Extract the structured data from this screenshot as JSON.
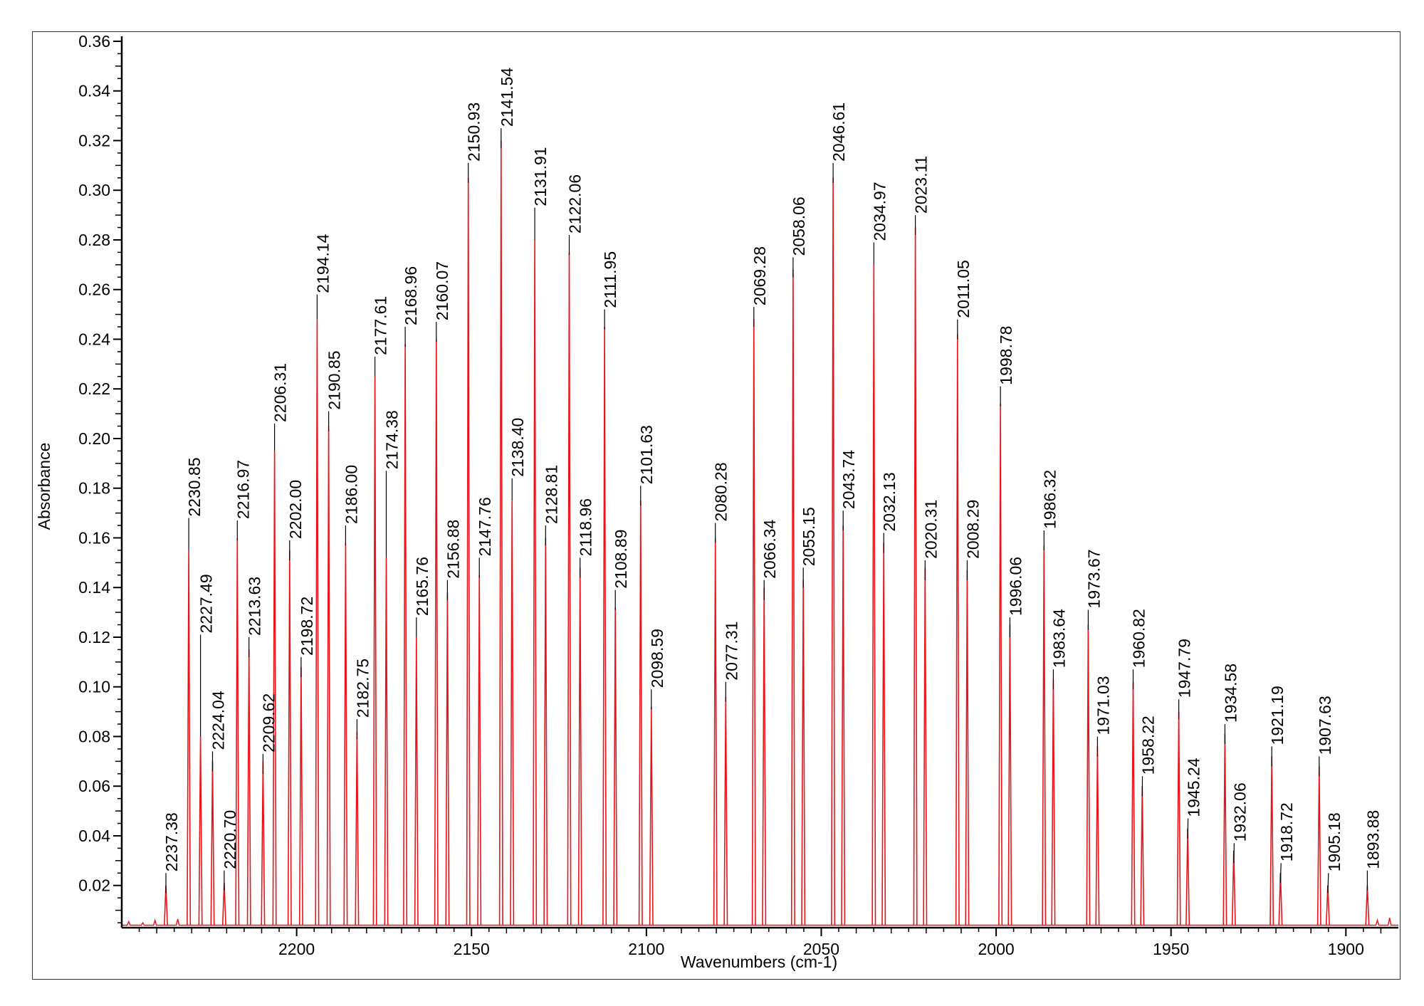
{
  "chart_data": {
    "type": "line",
    "xlabel": "Wavenumbers (cm-1)",
    "ylabel": "Absorbance",
    "xlim": [
      2250,
      1885
    ],
    "ylim": [
      0.003,
      0.362
    ],
    "x_reversed": true,
    "grid": false,
    "legend": "none",
    "line_color": "#e8141b",
    "leader_color": "#000000",
    "x_ticks": [
      {
        "value": 2200,
        "label": "2200"
      },
      {
        "value": 2150,
        "label": "2150"
      },
      {
        "value": 2100,
        "label": "2100"
      },
      {
        "value": 2050,
        "label": "2050"
      },
      {
        "value": 2000,
        "label": "2000"
      },
      {
        "value": 1950,
        "label": "1950"
      },
      {
        "value": 1900,
        "label": "1900"
      }
    ],
    "y_ticks": [
      {
        "value": 0.02,
        "label": "0.02"
      },
      {
        "value": 0.04,
        "label": "0.04"
      },
      {
        "value": 0.06,
        "label": "0.06"
      },
      {
        "value": 0.08,
        "label": "0.08"
      },
      {
        "value": 0.1,
        "label": "0.10"
      },
      {
        "value": 0.12,
        "label": "0.12"
      },
      {
        "value": 0.14,
        "label": "0.14"
      },
      {
        "value": 0.16,
        "label": "0.16"
      },
      {
        "value": 0.18,
        "label": "0.18"
      },
      {
        "value": 0.2,
        "label": "0.20"
      },
      {
        "value": 0.22,
        "label": "0.22"
      },
      {
        "value": 0.24,
        "label": "0.24"
      },
      {
        "value": 0.26,
        "label": "0.26"
      },
      {
        "value": 0.28,
        "label": "0.28"
      },
      {
        "value": 0.3,
        "label": "0.30"
      },
      {
        "value": 0.32,
        "label": "0.32"
      },
      {
        "value": 0.34,
        "label": "0.34"
      },
      {
        "value": 0.36,
        "label": "0.36"
      }
    ],
    "peaks": [
      {
        "x": 2237.38,
        "label": "2237.38",
        "y": 0.02,
        "label_y": 0.025
      },
      {
        "x": 2230.85,
        "label": "2230.85",
        "y": 0.155,
        "label_y": 0.168
      },
      {
        "x": 2227.49,
        "label": "2227.49",
        "y": 0.08,
        "label_y": 0.121
      },
      {
        "x": 2224.04,
        "label": "2224.04",
        "y": 0.07,
        "label_y": 0.074
      },
      {
        "x": 2220.7,
        "label": "2220.70",
        "y": 0.021,
        "label_y": 0.026
      },
      {
        "x": 2216.97,
        "label": "2216.97",
        "y": 0.16,
        "label_y": 0.167
      },
      {
        "x": 2213.63,
        "label": "2213.63",
        "y": 0.115,
        "label_y": 0.12
      },
      {
        "x": 2209.62,
        "label": "2209.62",
        "y": 0.07,
        "label_y": 0.073
      },
      {
        "x": 2206.31,
        "label": "2206.31",
        "y": 0.195,
        "label_y": 0.206
      },
      {
        "x": 2202.0,
        "label": "2202.00",
        "y": 0.155,
        "label_y": 0.159
      },
      {
        "x": 2198.72,
        "label": "2198.72",
        "y": 0.108,
        "label_y": 0.112
      },
      {
        "x": 2194.14,
        "label": "2194.14",
        "y": 0.248,
        "label_y": 0.258
      },
      {
        "x": 2190.85,
        "label": "2190.85",
        "y": 0.205,
        "label_y": 0.211
      },
      {
        "x": 2186.0,
        "label": "2186.00",
        "y": 0.158,
        "label_y": 0.165
      },
      {
        "x": 2182.75,
        "label": "2182.75",
        "y": 0.082,
        "label_y": 0.087
      },
      {
        "x": 2177.61,
        "label": "2177.61",
        "y": 0.225,
        "label_y": 0.233
      },
      {
        "x": 2174.38,
        "label": "2174.38",
        "y": 0.152,
        "label_y": 0.187
      },
      {
        "x": 2168.96,
        "label": "2168.96",
        "y": 0.238,
        "label_y": 0.245
      },
      {
        "x": 2165.76,
        "label": "2165.76",
        "y": 0.12,
        "label_y": 0.128
      },
      {
        "x": 2160.07,
        "label": "2160.07",
        "y": 0.24,
        "label_y": 0.247
      },
      {
        "x": 2156.88,
        "label": "2156.88",
        "y": 0.138,
        "label_y": 0.143
      },
      {
        "x": 2150.93,
        "label": "2150.93",
        "y": 0.305,
        "label_y": 0.311
      },
      {
        "x": 2147.76,
        "label": "2147.76",
        "y": 0.145,
        "label_y": 0.152
      },
      {
        "x": 2141.54,
        "label": "2141.54",
        "y": 0.32,
        "label_y": 0.325
      },
      {
        "x": 2138.4,
        "label": "2138.40",
        "y": 0.175,
        "label_y": 0.184
      },
      {
        "x": 2131.91,
        "label": "2131.91",
        "y": 0.28,
        "label_y": 0.293
      },
      {
        "x": 2128.81,
        "label": "2128.81",
        "y": 0.16,
        "label_y": 0.165
      },
      {
        "x": 2122.06,
        "label": "2122.06",
        "y": 0.275,
        "label_y": 0.282
      },
      {
        "x": 2118.96,
        "label": "2118.96",
        "y": 0.148,
        "label_y": 0.152
      },
      {
        "x": 2111.95,
        "label": "2111.95",
        "y": 0.245,
        "label_y": 0.252
      },
      {
        "x": 2108.89,
        "label": "2108.89",
        "y": 0.132,
        "label_y": 0.139
      },
      {
        "x": 2101.63,
        "label": "2101.63",
        "y": 0.175,
        "label_y": 0.181
      },
      {
        "x": 2098.59,
        "label": "2098.59",
        "y": 0.092,
        "label_y": 0.099
      },
      {
        "x": 2080.28,
        "label": "2080.28",
        "y": 0.16,
        "label_y": 0.166
      },
      {
        "x": 2077.31,
        "label": "2077.31",
        "y": 0.096,
        "label_y": 0.102
      },
      {
        "x": 2069.28,
        "label": "2069.28",
        "y": 0.248,
        "label_y": 0.253
      },
      {
        "x": 2066.34,
        "label": "2066.34",
        "y": 0.14,
        "label_y": 0.143
      },
      {
        "x": 2058.06,
        "label": "2058.06",
        "y": 0.268,
        "label_y": 0.273
      },
      {
        "x": 2055.15,
        "label": "2055.15",
        "y": 0.143,
        "label_y": 0.148
      },
      {
        "x": 2046.61,
        "label": "2046.61",
        "y": 0.305,
        "label_y": 0.311
      },
      {
        "x": 2043.74,
        "label": "2043.74",
        "y": 0.165,
        "label_y": 0.171
      },
      {
        "x": 2034.97,
        "label": "2034.97",
        "y": 0.27,
        "label_y": 0.279
      },
      {
        "x": 2032.13,
        "label": "2032.13",
        "y": 0.158,
        "label_y": 0.162
      },
      {
        "x": 2023.11,
        "label": "2023.11",
        "y": 0.285,
        "label_y": 0.29
      },
      {
        "x": 2020.31,
        "label": "2020.31",
        "y": 0.148,
        "label_y": 0.151
      },
      {
        "x": 2011.05,
        "label": "2011.05",
        "y": 0.242,
        "label_y": 0.248
      },
      {
        "x": 2008.29,
        "label": "2008.29",
        "y": 0.147,
        "label_y": 0.151
      },
      {
        "x": 1998.78,
        "label": "1998.78",
        "y": 0.214,
        "label_y": 0.221
      },
      {
        "x": 1996.06,
        "label": "1996.06",
        "y": 0.125,
        "label_y": 0.128
      },
      {
        "x": 1986.32,
        "label": "1986.32",
        "y": 0.157,
        "label_y": 0.163
      },
      {
        "x": 1983.64,
        "label": "1983.64",
        "y": 0.103,
        "label_y": 0.107
      },
      {
        "x": 1973.67,
        "label": "1973.67",
        "y": 0.125,
        "label_y": 0.131
      },
      {
        "x": 1971.03,
        "label": "1971.03",
        "y": 0.076,
        "label_y": 0.08
      },
      {
        "x": 1960.82,
        "label": "1960.82",
        "y": 0.102,
        "label_y": 0.107
      },
      {
        "x": 1958.22,
        "label": "1958.22",
        "y": 0.06,
        "label_y": 0.064
      },
      {
        "x": 1947.79,
        "label": "1947.79",
        "y": 0.09,
        "label_y": 0.095
      },
      {
        "x": 1945.24,
        "label": "1945.24",
        "y": 0.043,
        "label_y": 0.047
      },
      {
        "x": 1934.58,
        "label": "1934.58",
        "y": 0.081,
        "label_y": 0.085
      },
      {
        "x": 1932.06,
        "label": "1932.06",
        "y": 0.034,
        "label_y": 0.037
      },
      {
        "x": 1921.19,
        "label": "1921.19",
        "y": 0.072,
        "label_y": 0.076
      },
      {
        "x": 1918.72,
        "label": "1918.72",
        "y": 0.025,
        "label_y": 0.029
      },
      {
        "x": 1907.63,
        "label": "1907.63",
        "y": 0.068,
        "label_y": 0.072
      },
      {
        "x": 1905.18,
        "label": "1905.18",
        "y": 0.02,
        "label_y": 0.025
      },
      {
        "x": 1893.88,
        "label": "1893.88",
        "y": 0.02,
        "label_y": 0.026
      }
    ],
    "minor_peaks": [
      {
        "x": 2248.0,
        "y": 0.0055
      },
      {
        "x": 2244.0,
        "y": 0.005
      },
      {
        "x": 2240.5,
        "y": 0.006
      },
      {
        "x": 2234.0,
        "y": 0.0065
      },
      {
        "x": 1891.0,
        "y": 0.006
      },
      {
        "x": 1887.5,
        "y": 0.007
      }
    ]
  }
}
